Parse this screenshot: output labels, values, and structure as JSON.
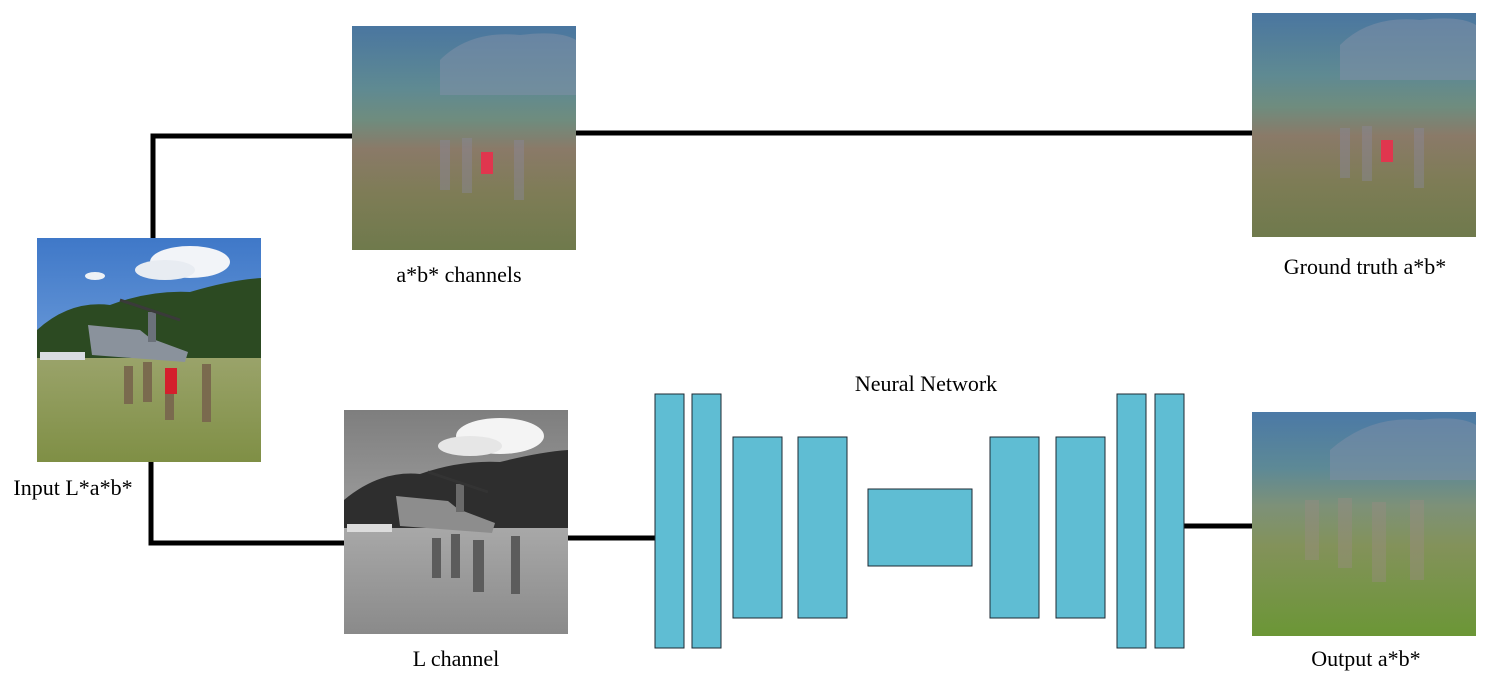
{
  "labels": {
    "input": "Input L*a*b*",
    "ab_channels": "a*b* channels",
    "ground_truth": "Ground truth a*b*",
    "l_channel": "L channel",
    "network": "Neural Network",
    "output": "Output a*b*"
  },
  "colors": {
    "connector": "#000000",
    "layer_fill": "#5fbdd3",
    "layer_stroke": "#1d2a33",
    "ab_sky": "#4f7fa3",
    "ab_ground": "#7c7a52",
    "output_ground": "#6f9a3c",
    "highlight_red": "#e0364e"
  }
}
